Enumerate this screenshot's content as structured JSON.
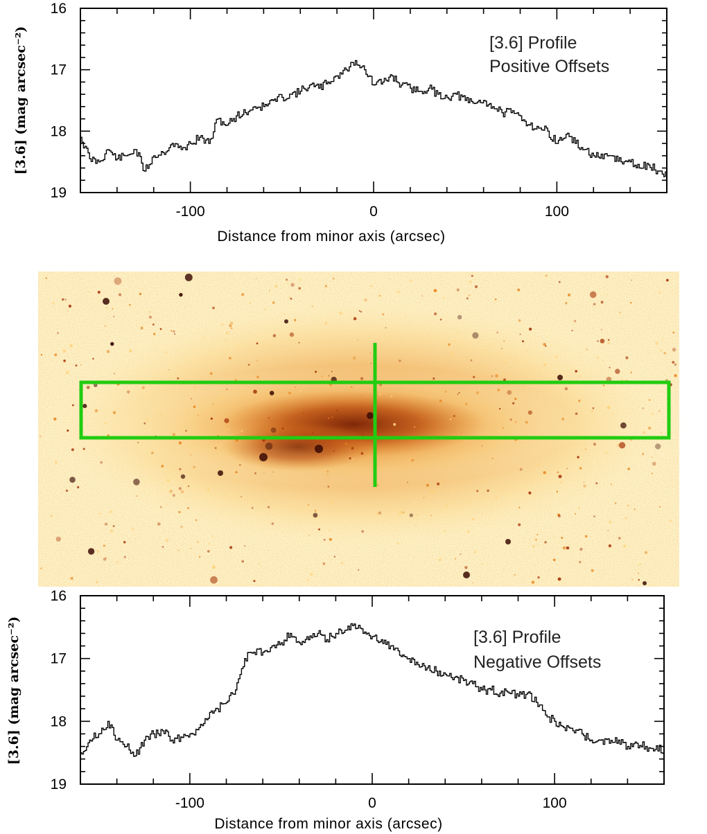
{
  "chart_data": [
    {
      "type": "line",
      "xlabel": "Distance from minor axis (arcsec)",
      "ylabel": "[3.6] (mag arcsec⁻²)",
      "xlim": [
        -160,
        160
      ],
      "ylim": [
        19,
        16
      ],
      "y_inverted": true,
      "x_ticks": [
        -100,
        0,
        100
      ],
      "y_ticks": [
        16,
        17,
        18,
        19
      ],
      "annotation": [
        "[3.6] Profile",
        "Positive Offsets"
      ],
      "series": [
        {
          "x": [
            -160,
            -155,
            -150,
            -145,
            -140,
            -135,
            -130,
            -125,
            -120,
            -115,
            -110,
            -105,
            -100,
            -95,
            -90,
            -85,
            -80,
            -75,
            -70,
            -65,
            -60,
            -55,
            -50,
            -45,
            -40,
            -35,
            -30,
            -25,
            -20,
            -15,
            -10,
            -5,
            0,
            5,
            10,
            15,
            20,
            25,
            30,
            35,
            40,
            45,
            50,
            55,
            60,
            65,
            70,
            75,
            80,
            85,
            90,
            95,
            100,
            105,
            110,
            115,
            120,
            125,
            130,
            135,
            140,
            145,
            150,
            155,
            160
          ],
          "y": [
            18.1,
            18.45,
            18.5,
            18.3,
            18.45,
            18.4,
            18.3,
            18.65,
            18.4,
            18.35,
            18.2,
            18.3,
            18.2,
            18.1,
            18.2,
            17.8,
            17.9,
            17.75,
            17.7,
            17.6,
            17.6,
            17.5,
            17.45,
            17.4,
            17.35,
            17.25,
            17.3,
            17.2,
            17.1,
            17.0,
            16.85,
            17.0,
            17.25,
            17.2,
            17.1,
            17.25,
            17.3,
            17.35,
            17.3,
            17.4,
            17.45,
            17.4,
            17.5,
            17.55,
            17.5,
            17.6,
            17.7,
            17.7,
            17.75,
            17.9,
            17.95,
            18.0,
            18.2,
            18.05,
            18.2,
            18.3,
            18.4,
            18.45,
            18.4,
            18.5,
            18.5,
            18.6,
            18.55,
            18.65,
            18.75
          ]
        }
      ]
    },
    {
      "type": "line",
      "xlabel": "Distance from minor axis (arcsec)",
      "ylabel": "[3.6] (mag arcsec⁻²)",
      "xlim": [
        -160,
        160
      ],
      "ylim": [
        19,
        16
      ],
      "y_inverted": true,
      "x_ticks": [
        -100,
        0,
        100
      ],
      "y_ticks": [
        16,
        17,
        18,
        19
      ],
      "annotation": [
        "[3.6] Profile",
        "Negative Offsets"
      ],
      "series": [
        {
          "x": [
            -160,
            -155,
            -150,
            -145,
            -140,
            -135,
            -130,
            -125,
            -120,
            -115,
            -110,
            -105,
            -100,
            -95,
            -90,
            -85,
            -80,
            -75,
            -70,
            -65,
            -60,
            -55,
            -50,
            -45,
            -40,
            -35,
            -30,
            -25,
            -20,
            -15,
            -10,
            -5,
            0,
            5,
            10,
            15,
            20,
            25,
            30,
            35,
            40,
            45,
            50,
            55,
            60,
            65,
            70,
            75,
            80,
            85,
            90,
            95,
            100,
            105,
            110,
            115,
            120,
            125,
            130,
            135,
            140,
            145,
            150,
            155,
            160
          ],
          "y": [
            18.5,
            18.3,
            18.2,
            18.0,
            18.3,
            18.4,
            18.55,
            18.3,
            18.2,
            18.15,
            18.3,
            18.25,
            18.2,
            18.1,
            17.95,
            17.8,
            17.7,
            17.5,
            17.0,
            16.9,
            16.9,
            16.8,
            16.75,
            16.6,
            16.75,
            16.7,
            16.6,
            16.7,
            16.6,
            16.55,
            16.45,
            16.6,
            16.65,
            16.7,
            16.8,
            16.95,
            17.0,
            17.1,
            17.15,
            17.2,
            17.25,
            17.3,
            17.35,
            17.4,
            17.5,
            17.5,
            17.55,
            17.55,
            17.6,
            17.55,
            17.7,
            17.9,
            18.0,
            18.1,
            18.15,
            18.2,
            18.3,
            18.3,
            18.35,
            18.3,
            18.4,
            18.35,
            18.4,
            18.45,
            18.45
          ]
        }
      ]
    }
  ],
  "image_panel": {
    "box_color": "#22cc11",
    "box_x_range": [
      -160,
      160
    ],
    "colormap": [
      "#fff8cc",
      "#ffd27a",
      "#e8851f",
      "#a8380c",
      "#3a0a04"
    ]
  }
}
